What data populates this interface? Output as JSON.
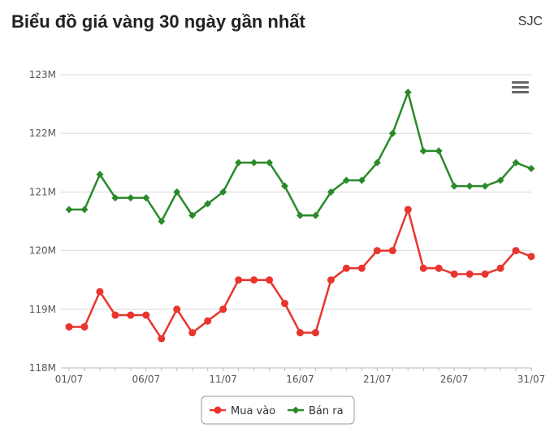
{
  "header": {
    "title": "Biểu đồ giá vàng 30 ngày gần nhất",
    "brand": "SJC"
  },
  "menu_icon": "hamburger-menu-icon",
  "chart_data": {
    "type": "line",
    "x_tick_labels": [
      "01/07",
      "06/07",
      "11/07",
      "16/07",
      "21/07",
      "26/07",
      "31/07"
    ],
    "x_tick_indices": [
      0,
      5,
      10,
      15,
      20,
      25,
      30
    ],
    "y_tick_labels": [
      "118M",
      "119M",
      "120M",
      "121M",
      "122M",
      "123M"
    ],
    "y_tick_values": [
      118,
      119,
      120,
      121,
      122,
      123
    ],
    "ylim": [
      118,
      123
    ],
    "x_count": 31,
    "grid": true,
    "legend_position": "bottom-center",
    "series": [
      {
        "name": "Mua vào",
        "color": "#e8352e",
        "marker": "circle",
        "values": [
          118.7,
          118.7,
          119.3,
          118.9,
          118.9,
          118.9,
          118.5,
          119.0,
          118.6,
          118.8,
          119.0,
          119.5,
          119.5,
          119.5,
          119.1,
          118.6,
          118.6,
          119.5,
          119.7,
          119.7,
          120.0,
          120.0,
          120.7,
          119.7,
          119.7,
          119.6,
          119.6,
          119.6,
          119.7,
          120.0,
          119.9
        ]
      },
      {
        "name": "Bán ra",
        "color": "#2a8a2a",
        "marker": "diamond",
        "values": [
          120.7,
          120.7,
          121.3,
          120.9,
          120.9,
          120.9,
          120.5,
          121.0,
          120.6,
          120.8,
          121.0,
          121.5,
          121.5,
          121.5,
          121.1,
          120.6,
          120.6,
          121.0,
          121.2,
          121.2,
          121.5,
          122.0,
          122.7,
          121.7,
          121.7,
          121.1,
          121.1,
          121.1,
          121.2,
          121.5,
          121.4
        ]
      }
    ]
  }
}
